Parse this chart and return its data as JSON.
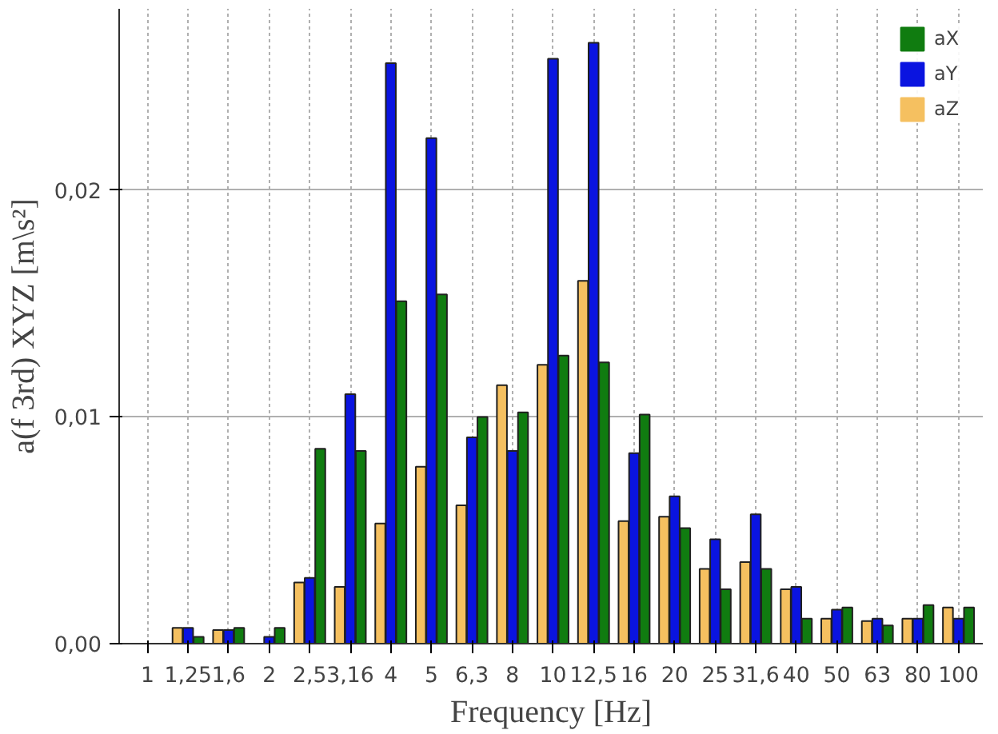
{
  "chart_data": {
    "type": "bar",
    "xlabel": "Frequency [Hz]",
    "ylabel": "a(f 3rd) XYZ [m\\s²]",
    "categories": [
      "1",
      "1,25",
      "1,6",
      "2",
      "2,5",
      "3,16",
      "4",
      "5",
      "6,3",
      "8",
      "10",
      "12,5",
      "16",
      "20",
      "25",
      "31,6",
      "40",
      "50",
      "63",
      "80",
      "100"
    ],
    "series": [
      {
        "name": "aZ",
        "color": "#f5c060",
        "values": [
          0,
          0.0007,
          0.0006,
          0,
          0.0027,
          0.0025,
          0.0053,
          0.0078,
          0.0061,
          0.0114,
          0.0123,
          0.016,
          0.0054,
          0.0056,
          0.0033,
          0.0036,
          0.0024,
          0.0011,
          0.001,
          0.0011,
          0.0016
        ]
      },
      {
        "name": "aY",
        "color": "#0a14e0",
        "values": [
          0,
          0.0007,
          0.0006,
          0.0003,
          0.0029,
          0.011,
          0.0256,
          0.0223,
          0.0091,
          0.0085,
          0.0258,
          0.0265,
          0.0084,
          0.0065,
          0.0046,
          0.0057,
          0.0025,
          0.0015,
          0.0011,
          0.0011,
          0.0011
        ]
      },
      {
        "name": "aX",
        "color": "#107c10",
        "values": [
          0,
          0.0003,
          0.0007,
          0.0007,
          0.0086,
          0.0085,
          0.0151,
          0.0154,
          0.01,
          0.0102,
          0.0127,
          0.0124,
          0.0101,
          0.0051,
          0.0024,
          0.0033,
          0.0011,
          0.0016,
          0.0008,
          0.0017,
          0.0016
        ]
      }
    ],
    "ylim": [
      0,
      0.028
    ],
    "yticks": [
      {
        "value": 0,
        "label": "0,00"
      },
      {
        "value": 0.01,
        "label": "0,01"
      },
      {
        "value": 0.02,
        "label": "0,02"
      }
    ],
    "grid": true,
    "legend": "top right"
  }
}
